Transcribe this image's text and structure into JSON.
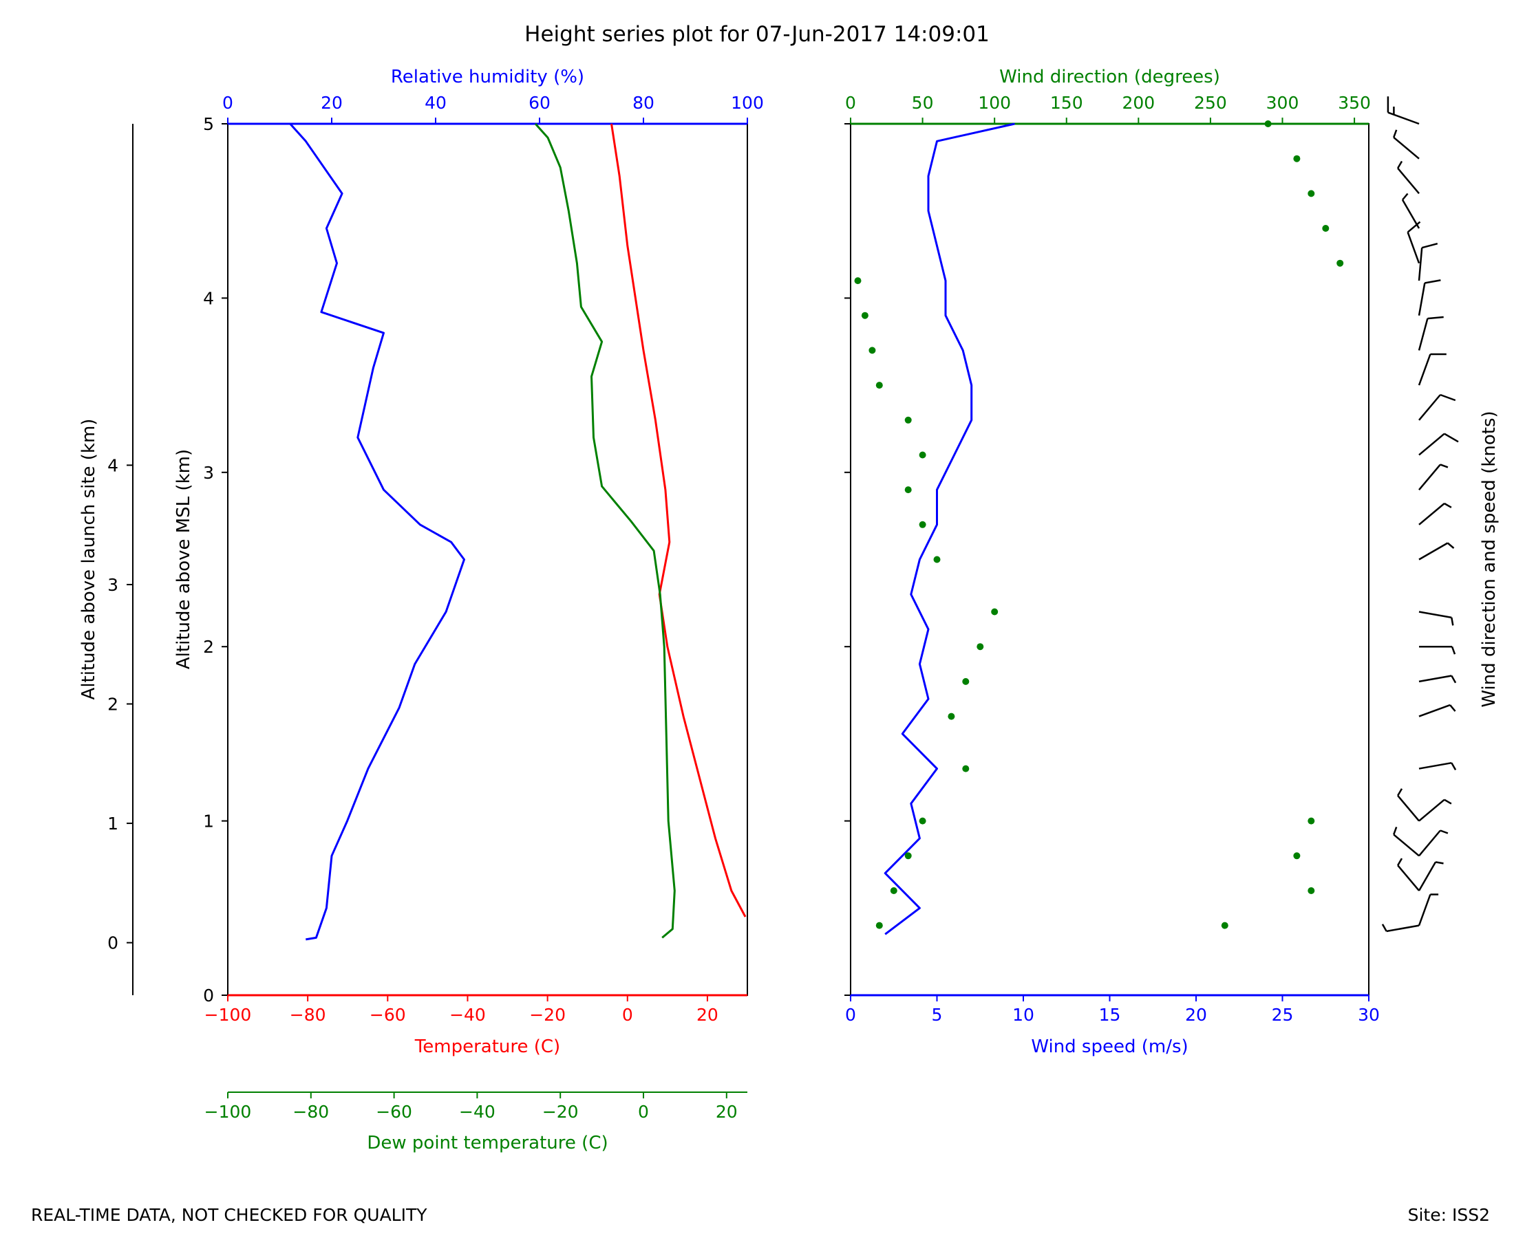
{
  "title": "Height series plot for 07-Jun-2017 14:09:01",
  "footer": {
    "left": "REAL-TIME DATA, NOT CHECKED FOR QUALITY",
    "right": "Site: ISS2"
  },
  "colors": {
    "temperature": "#ff0000",
    "dewpoint": "#008000",
    "humidity": "#0000ff",
    "wind_speed": "#0000ff",
    "wind_direction": "#008000",
    "barbs": "#000000",
    "text": "#000000"
  },
  "chart_data": [
    {
      "type": "line",
      "name": "thermodynamic-panel",
      "axes": {
        "launch_altitude": {
          "label": "Altitude above launch site (km)",
          "range": [
            -0.44,
            6.86
          ],
          "ticks": [
            0,
            1,
            2,
            3,
            4
          ]
        },
        "msl_altitude": {
          "label": "Altitude above MSL (km)",
          "range": [
            0,
            5
          ],
          "ticks": [
            0,
            1,
            2,
            3,
            4,
            5
          ]
        },
        "temperature": {
          "label": "Temperature (C)",
          "range": [
            -100,
            30
          ],
          "ticks": [
            -100,
            -80,
            -60,
            -40,
            -20,
            0,
            20
          ]
        },
        "dewpoint": {
          "label": "Dew point temperature (C)",
          "range": [
            -100,
            25
          ],
          "ticks": [
            -100,
            -80,
            -60,
            -40,
            -20,
            0,
            20
          ]
        },
        "humidity": {
          "label": "Relative humidity (%)",
          "range": [
            0,
            100
          ],
          "ticks": [
            0,
            20,
            40,
            60,
            80,
            100
          ]
        }
      },
      "series": [
        {
          "name": "Temperature",
          "axis": "temperature",
          "points": [
            [
              29.5,
              0.45
            ],
            [
              26,
              0.6
            ],
            [
              22,
              0.9
            ],
            [
              18,
              1.25
            ],
            [
              14,
              1.6
            ],
            [
              10,
              2.0
            ],
            [
              8,
              2.3
            ],
            [
              10.5,
              2.6
            ],
            [
              9.5,
              2.9
            ],
            [
              7,
              3.3
            ],
            [
              4,
              3.7
            ],
            [
              2,
              4.0
            ],
            [
              0,
              4.3
            ],
            [
              -2,
              4.7
            ],
            [
              -4,
              5.0
            ]
          ]
        },
        {
          "name": "Dew point",
          "axis": "dewpoint",
          "points": [
            [
              4.5,
              0.33
            ],
            [
              7,
              0.38
            ],
            [
              7.5,
              0.6
            ],
            [
              6,
              1.0
            ],
            [
              5.5,
              1.5
            ],
            [
              5,
              2.0
            ],
            [
              4,
              2.3
            ],
            [
              2.5,
              2.55
            ],
            [
              -3,
              2.72
            ],
            [
              -10,
              2.92
            ],
            [
              -12,
              3.2
            ],
            [
              -12.5,
              3.55
            ],
            [
              -10,
              3.75
            ],
            [
              -15,
              3.95
            ],
            [
              -16,
              4.2
            ],
            [
              -18,
              4.5
            ],
            [
              -20,
              4.75
            ],
            [
              -23,
              4.92
            ],
            [
              -26,
              5.0
            ]
          ]
        },
        {
          "name": "Relative humidity",
          "axis": "humidity",
          "points": [
            [
              15,
              0.32
            ],
            [
              17,
              0.33
            ],
            [
              19,
              0.5
            ],
            [
              20,
              0.8
            ],
            [
              23,
              1.0
            ],
            [
              27,
              1.3
            ],
            [
              33,
              1.65
            ],
            [
              36,
              1.9
            ],
            [
              42,
              2.2
            ],
            [
              45.5,
              2.5
            ],
            [
              43,
              2.6
            ],
            [
              37,
              2.7
            ],
            [
              30,
              2.9
            ],
            [
              25,
              3.2
            ],
            [
              28,
              3.6
            ],
            [
              30,
              3.8
            ],
            [
              18,
              3.92
            ],
            [
              21,
              4.2
            ],
            [
              19,
              4.4
            ],
            [
              22,
              4.6
            ],
            [
              15,
              4.9
            ],
            [
              12,
              5.0
            ]
          ]
        }
      ]
    },
    {
      "type": "line+scatter",
      "name": "wind-panel",
      "axes": {
        "msl_altitude": {
          "range": [
            0,
            5
          ],
          "ticks": [
            0,
            1,
            2,
            3,
            4,
            5
          ]
        },
        "wind_speed": {
          "label": "Wind speed (m/s)",
          "range": [
            0,
            30
          ],
          "ticks": [
            0,
            5,
            10,
            15,
            20,
            25,
            30
          ]
        },
        "wind_direction": {
          "label": "Wind direction (degrees)",
          "range": [
            0,
            360
          ],
          "ticks": [
            0,
            50,
            100,
            150,
            200,
            250,
            300,
            350
          ]
        },
        "barbs": {
          "label": "Wind direction and speed (knots)"
        }
      },
      "series": [
        {
          "name": "Wind speed",
          "axis": "wind_speed",
          "points": [
            [
              2,
              0.35
            ],
            [
              4,
              0.5
            ],
            [
              2,
              0.7
            ],
            [
              4,
              0.9
            ],
            [
              3.5,
              1.1
            ],
            [
              5,
              1.3
            ],
            [
              3,
              1.5
            ],
            [
              4.5,
              1.7
            ],
            [
              4,
              1.9
            ],
            [
              4.5,
              2.1
            ],
            [
              3.5,
              2.3
            ],
            [
              4,
              2.5
            ],
            [
              5,
              2.7
            ],
            [
              5,
              2.9
            ],
            [
              6,
              3.1
            ],
            [
              7,
              3.3
            ],
            [
              7,
              3.5
            ],
            [
              6.5,
              3.7
            ],
            [
              5.5,
              3.9
            ],
            [
              5.5,
              4.1
            ],
            [
              5,
              4.3
            ],
            [
              4.5,
              4.5
            ],
            [
              4.5,
              4.7
            ],
            [
              5,
              4.9
            ],
            [
              9.5,
              5.0
            ]
          ]
        },
        {
          "name": "Wind direction",
          "axis": "wind_direction",
          "points": [
            [
              20,
              0.4
            ],
            [
              260,
              0.4
            ],
            [
              30,
              0.6
            ],
            [
              320,
              0.6
            ],
            [
              40,
              0.8
            ],
            [
              310,
              0.8
            ],
            [
              50,
              1.0
            ],
            [
              320,
              1.0
            ],
            [
              80,
              1.3
            ],
            [
              70,
              1.6
            ],
            [
              80,
              1.8
            ],
            [
              90,
              2.0
            ],
            [
              100,
              2.2
            ],
            [
              60,
              2.5
            ],
            [
              50,
              2.7
            ],
            [
              40,
              2.9
            ],
            [
              50,
              3.1
            ],
            [
              40,
              3.3
            ],
            [
              20,
              3.5
            ],
            [
              15,
              3.7
            ],
            [
              10,
              3.9
            ],
            [
              5,
              4.1
            ],
            [
              340,
              4.2
            ],
            [
              330,
              4.4
            ],
            [
              320,
              4.6
            ],
            [
              310,
              4.8
            ],
            [
              290,
              5.0
            ]
          ]
        }
      ]
    }
  ]
}
